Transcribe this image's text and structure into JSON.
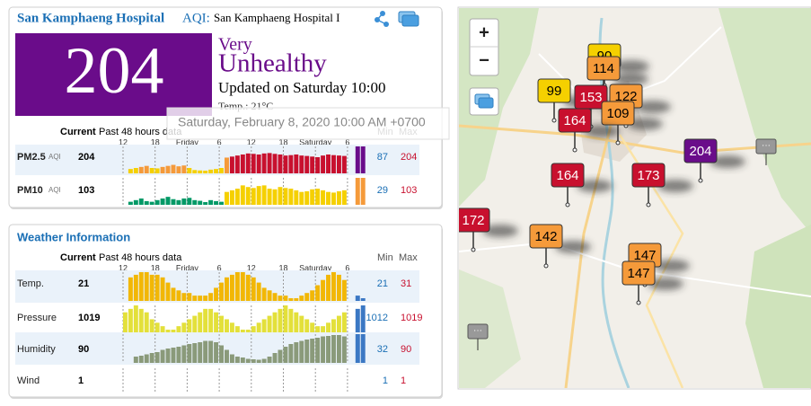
{
  "aqi_card": {
    "station": "San Kamphaeng Hospital",
    "aqi_label": "AQI:",
    "station_full": "San Kamphaeng Hospital I",
    "aqi": 204,
    "level_line1": "Very",
    "level_line2": "Unhealthy",
    "updated": "Updated on Saturday 10:00",
    "temp": "Temp.: 21°C",
    "tooltip": "Saturday, February 8, 2020 10:00 AM +0700",
    "columns": {
      "current": "Current",
      "past": "Past 48 hours data",
      "min": "Min",
      "max": "Max"
    },
    "time_labels": [
      "12",
      "18",
      "Friday",
      "6",
      "12",
      "18",
      "Saturday",
      "6"
    ],
    "rows": [
      {
        "name": "PM2.5",
        "unit": "AQI",
        "current": 204,
        "min": 87,
        "max": 204,
        "history": [
          null,
          null,
          95,
          100,
          105,
          110,
          100,
          98,
          105,
          110,
          115,
          108,
          112,
          100,
          90,
          88,
          87,
          92,
          95,
          100,
          150,
          155,
          160,
          165,
          170,
          168,
          165,
          170,
          172,
          168,
          165,
          160,
          162,
          165,
          160,
          158,
          155,
          152,
          160,
          165,
          162,
          160,
          158,
          null,
          204,
          204
        ]
      },
      {
        "name": "PM10",
        "unit": "AQI",
        "current": 103,
        "min": 29,
        "max": 103,
        "history": [
          null,
          null,
          30,
          35,
          40,
          32,
          30,
          35,
          40,
          45,
          38,
          35,
          40,
          42,
          35,
          33,
          29,
          35,
          32,
          30,
          60,
          65,
          70,
          80,
          75,
          72,
          78,
          80,
          70,
          68,
          75,
          72,
          70,
          65,
          60,
          62,
          68,
          70,
          65,
          60,
          58,
          62,
          65,
          null,
          103,
          103
        ]
      }
    ]
  },
  "weather": {
    "title": "Weather Information",
    "columns": {
      "current": "Current",
      "past": "Past 48 hours data",
      "min": "Min",
      "max": "Max"
    },
    "time_labels": [
      "12",
      "18",
      "Friday",
      "6",
      "12",
      "18",
      "Saturday",
      "6"
    ],
    "current_color": "#3b78c4",
    "rows": [
      {
        "name": "Temp.",
        "current": 21,
        "min": 21,
        "max": 31,
        "color": "#f2b705",
        "history": [
          null,
          null,
          29,
          30,
          31,
          31,
          30,
          30,
          29,
          27,
          25,
          24,
          23,
          23,
          22,
          22,
          22,
          23,
          25,
          27,
          29,
          30,
          31,
          31,
          30,
          29,
          27,
          25,
          24,
          23,
          22,
          22,
          21,
          21,
          22,
          23,
          24,
          26,
          28,
          30,
          31,
          30,
          28,
          null,
          22,
          21
        ]
      },
      {
        "name": "Pressure",
        "current": 1019,
        "min": 1012,
        "max": 1019,
        "color": "#e3e03a",
        "history": [
          null,
          1017,
          1018,
          1019,
          1018,
          1017,
          1015,
          1014,
          1013,
          1012,
          1012,
          1013,
          1014,
          1015,
          1016,
          1017,
          1018,
          1018,
          1017,
          1016,
          1015,
          1014,
          1013,
          1012,
          1012,
          1013,
          1014,
          1015,
          1016,
          1017,
          1018,
          1019,
          1018,
          1017,
          1016,
          1015,
          1014,
          1013,
          1013,
          1014,
          1015,
          1016,
          1017,
          null,
          1018,
          1019
        ]
      },
      {
        "name": "Humidity",
        "current": 90,
        "min": 32,
        "max": 90,
        "color": "#8a9a7a",
        "history": [
          null,
          null,
          null,
          40,
          42,
          45,
          48,
          50,
          55,
          58,
          60,
          62,
          65,
          68,
          70,
          72,
          75,
          75,
          72,
          65,
          55,
          45,
          40,
          38,
          35,
          34,
          33,
          35,
          40,
          48,
          55,
          62,
          68,
          72,
          75,
          78,
          80,
          82,
          85,
          86,
          88,
          88,
          85,
          null,
          90,
          90
        ]
      },
      {
        "name": "Wind",
        "current": 1,
        "min": 1,
        "max": 1
      }
    ]
  },
  "map": {
    "zoom_in": "+",
    "zoom_out": "−",
    "markers": [
      90,
      114,
      99,
      153,
      122,
      109,
      164,
      164,
      173,
      204,
      172,
      142,
      147,
      147
    ]
  }
}
